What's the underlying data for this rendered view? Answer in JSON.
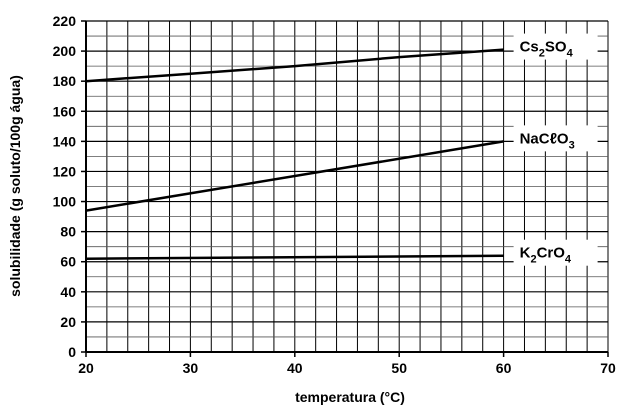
{
  "chart_data": {
    "type": "line",
    "title": "",
    "xlabel": "temperatura (°C)",
    "ylabel": "solubilidade (g soluto/100g água)",
    "xlim": [
      20,
      70
    ],
    "ylim": [
      0,
      220
    ],
    "xticks": [
      20,
      30,
      40,
      50,
      60,
      70
    ],
    "yticks": [
      0,
      20,
      40,
      60,
      80,
      100,
      120,
      140,
      160,
      180,
      200,
      220
    ],
    "grid": true,
    "series": [
      {
        "name": "Cs2SO4",
        "label_parts": [
          [
            "Cs",
            false
          ],
          [
            "2",
            true
          ],
          [
            "SO",
            false
          ],
          [
            "4",
            true
          ]
        ],
        "x": [
          20,
          30,
          40,
          50,
          60
        ],
        "y": [
          180,
          185,
          190,
          196,
          201
        ]
      },
      {
        "name": "NaCℓO3",
        "label_parts": [
          [
            "NaCℓO",
            false
          ],
          [
            "3",
            true
          ]
        ],
        "x": [
          20,
          60
        ],
        "y": [
          94,
          140
        ]
      },
      {
        "name": "K2CrO4",
        "label_parts": [
          [
            "K",
            false
          ],
          [
            "2",
            true
          ],
          [
            "CrO",
            false
          ],
          [
            "4",
            true
          ]
        ],
        "x": [
          20,
          60
        ],
        "y": [
          62,
          64
        ]
      }
    ]
  }
}
